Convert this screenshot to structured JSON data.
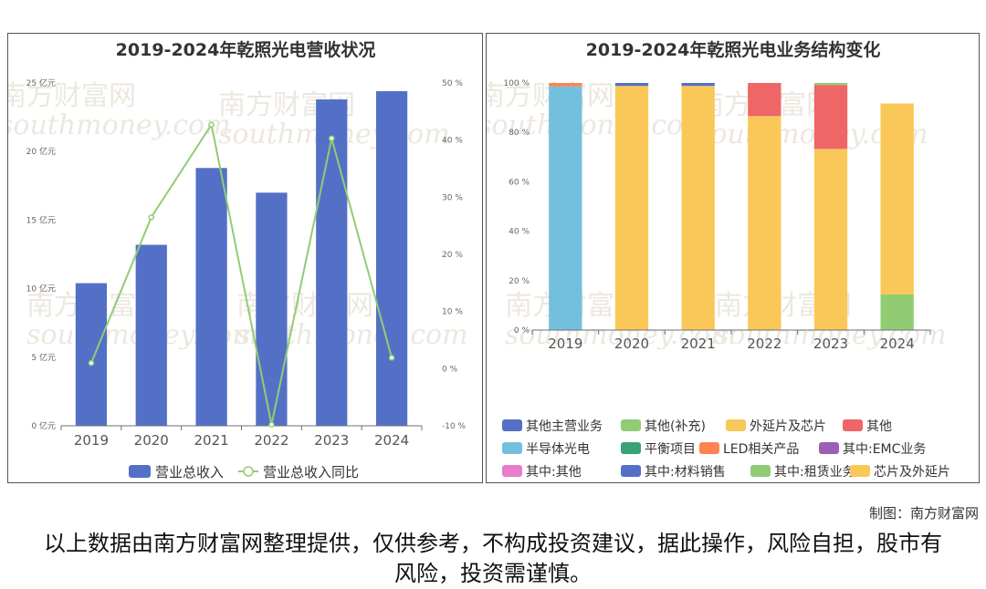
{
  "left_chart": {
    "title": "2019-2024年乾照光电营收状况",
    "legend": [
      "营业总收入",
      "营业总收入同比"
    ]
  },
  "right_chart": {
    "title": "2019-2024年乾照光电业务结构变化"
  },
  "watermark": {
    "cn": "南方财富网",
    "en": "southmoney.com"
  },
  "credit": "制图：南方财富网",
  "disclaimer": "以上数据由南方财富网整理提供，仅供参考，不构成投资建议，据此操作，风险自担，股市有风险，投资需谨慎。",
  "colors": {
    "bar_blue": "#5470c6",
    "line_green": "#91cc75"
  },
  "chart_data": [
    {
      "type": "bar",
      "title": "2019-2024年乾照光电营收状况",
      "categories": [
        "2019",
        "2020",
        "2021",
        "2022",
        "2023",
        "2024"
      ],
      "series": [
        {
          "name": "营业总收入",
          "type": "bar",
          "axis": "left",
          "values": [
            10.4,
            13.2,
            18.8,
            17.0,
            23.8,
            24.4
          ],
          "color": "#5470c6"
        },
        {
          "name": "营业总收入同比",
          "type": "line",
          "axis": "right",
          "values": [
            1.0,
            26.5,
            42.7,
            -9.8,
            40.3,
            1.9
          ],
          "color": "#91cc75"
        }
      ],
      "y_left": {
        "range": [
          0,
          25
        ],
        "ticks": [
          "0 亿元",
          "5 亿元",
          "10 亿元",
          "15 亿元",
          "20 亿元",
          "25 亿元"
        ]
      },
      "y_right": {
        "range": [
          -10,
          50
        ],
        "ticks": [
          "-10 %",
          "0 %",
          "10 %",
          "20 %",
          "30 %",
          "40 %",
          "50 %"
        ]
      },
      "legend_position": "bottom",
      "grid": false
    },
    {
      "type": "bar",
      "stacked": true,
      "title": "2019-2024年乾照光电业务结构变化",
      "categories": [
        "2019",
        "2020",
        "2021",
        "2022",
        "2023",
        "2024"
      ],
      "y_range": [
        0,
        100
      ],
      "y_ticks": [
        "0 %",
        "20 %",
        "40 %",
        "60 %",
        "80 %",
        "100 %"
      ],
      "series": [
        {
          "name": "其他主营业务",
          "color": "#5470c6",
          "values": [
            0,
            0,
            0,
            0,
            0,
            0
          ]
        },
        {
          "name": "其他(补充)",
          "color": "#91cc75",
          "values": [
            0,
            0,
            0,
            0,
            0,
            0
          ]
        },
        {
          "name": "外延片及芯片",
          "color": "#fac858",
          "values": [
            0,
            98.8,
            98.8,
            86.6,
            73.3,
            0
          ]
        },
        {
          "name": "其他",
          "color": "#ee6666",
          "values": [
            0,
            0,
            0,
            13.4,
            25.9,
            0
          ]
        },
        {
          "name": "半导体光电",
          "color": "#73c0de",
          "values": [
            98.6,
            0,
            0,
            0,
            0,
            0
          ]
        },
        {
          "name": "平衡项目",
          "color": "#3ba272",
          "values": [
            0,
            0,
            0,
            0,
            0,
            0
          ]
        },
        {
          "name": "LED相关产品",
          "color": "#fc8452",
          "values": [
            1.4,
            0,
            0,
            0,
            0,
            0
          ]
        },
        {
          "name": "其中:EMC业务",
          "color": "#9a60b4",
          "values": [
            0,
            0,
            0,
            0,
            0,
            0
          ]
        },
        {
          "name": "其中:其他",
          "color": "#ea7ccc",
          "values": [
            0,
            0,
            0,
            0,
            0,
            0
          ]
        },
        {
          "name": "其中:材料销售",
          "color": "#5470c6",
          "values": [
            0,
            1.2,
            1.2,
            0,
            0,
            0
          ]
        },
        {
          "name": "其中:租赁业务",
          "color": "#91cc75",
          "values": [
            0,
            0,
            0,
            0,
            0.8,
            14.4
          ]
        },
        {
          "name": "芯片及外延片",
          "color": "#fac858",
          "values": [
            0,
            0,
            0,
            0,
            0,
            77.3
          ]
        }
      ],
      "legend_position": "bottom",
      "grid": false
    }
  ]
}
